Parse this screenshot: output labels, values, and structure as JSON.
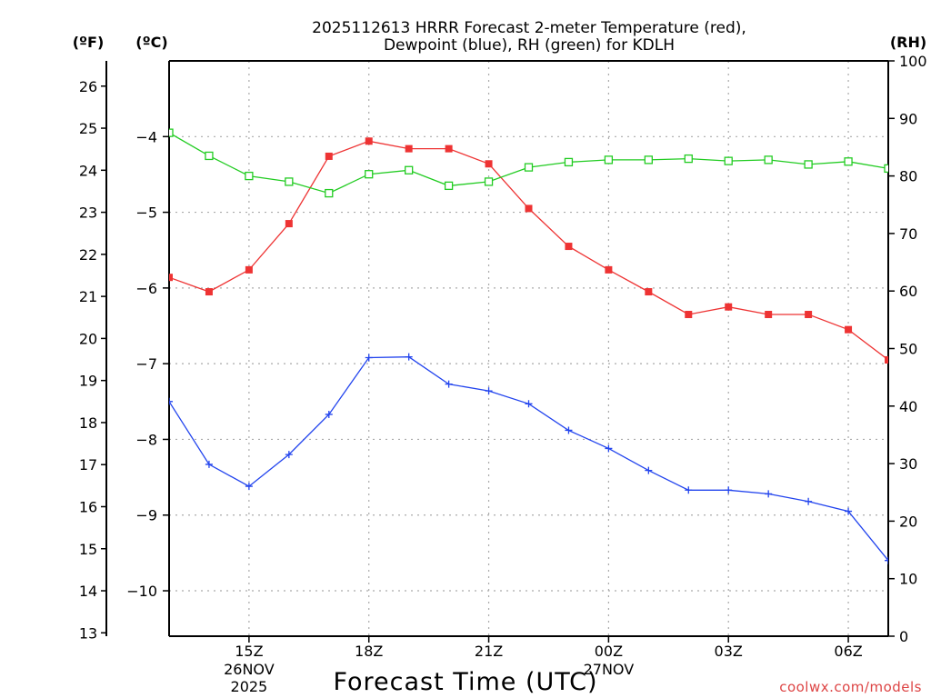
{
  "chart_data": {
    "type": "line",
    "title_line1": "2025112613 HRRR Forecast 2-meter Temperature (red),",
    "title_line2": "Dewpoint (blue), RH (green) for KDLH",
    "xlabel": "Forecast Time (UTC)",
    "credit": "coolwx.com/models",
    "unit_f": "(ºF)",
    "unit_c": "(ºC)",
    "unit_rh": "(RH)",
    "x_hours": [
      13,
      14,
      15,
      16,
      17,
      18,
      19,
      20,
      21,
      22,
      23,
      24,
      25,
      26,
      27,
      28,
      29,
      30,
      31
    ],
    "x_ticks": [
      {
        "hour": 15,
        "label": "15Z",
        "sub1": "26NOV",
        "sub2": "2025"
      },
      {
        "hour": 18,
        "label": "18Z",
        "sub1": "",
        "sub2": ""
      },
      {
        "hour": 21,
        "label": "21Z",
        "sub1": "",
        "sub2": ""
      },
      {
        "hour": 24,
        "label": "00Z",
        "sub1": "27NOV",
        "sub2": ""
      },
      {
        "hour": 27,
        "label": "03Z",
        "sub1": "",
        "sub2": ""
      },
      {
        "hour": 30,
        "label": "06Z",
        "sub1": "",
        "sub2": ""
      }
    ],
    "c_range": [
      -10.6,
      -3.0
    ],
    "c_ticks": [
      -4,
      -5,
      -6,
      -7,
      -8,
      -9,
      -10
    ],
    "c_tick_labels": [
      "−4",
      "−5",
      "−6",
      "−7",
      "−8",
      "−9",
      "−10"
    ],
    "f_ticks": [
      26,
      25,
      24,
      23,
      22,
      21,
      20,
      19,
      18,
      17,
      16,
      15,
      14,
      13
    ],
    "rh_range": [
      0,
      100
    ],
    "rh_ticks": [
      0,
      10,
      20,
      30,
      40,
      50,
      60,
      70,
      80,
      90,
      100
    ],
    "series": [
      {
        "name": "Temperature",
        "color": "#ee3333",
        "marker": "filled-square",
        "values": [
          -5.86,
          -6.05,
          -5.76,
          -5.15,
          -4.26,
          -4.06,
          -4.16,
          -4.16,
          -4.36,
          -4.95,
          -5.45,
          -5.76,
          -6.05,
          -6.35,
          -6.25,
          -6.35,
          -6.35,
          -6.55,
          -6.95
        ]
      },
      {
        "name": "Dewpoint",
        "color": "#2244ee",
        "marker": "plus",
        "values": [
          -7.5,
          -8.33,
          -8.62,
          -8.2,
          -7.67,
          -6.92,
          -6.91,
          -7.27,
          -7.36,
          -7.53,
          -7.88,
          -8.12,
          -8.41,
          -8.67,
          -8.67,
          -8.72,
          -8.82,
          -8.95,
          -9.6
        ]
      },
      {
        "name": "RH",
        "color": "#22cc22",
        "marker": "open-square",
        "values": [
          87.5,
          83.5,
          80,
          79,
          77,
          80.3,
          81,
          78.3,
          79,
          81.5,
          82.4,
          82.8,
          82.8,
          83,
          82.6,
          82.8,
          82,
          82.5,
          81.3
        ]
      }
    ]
  }
}
